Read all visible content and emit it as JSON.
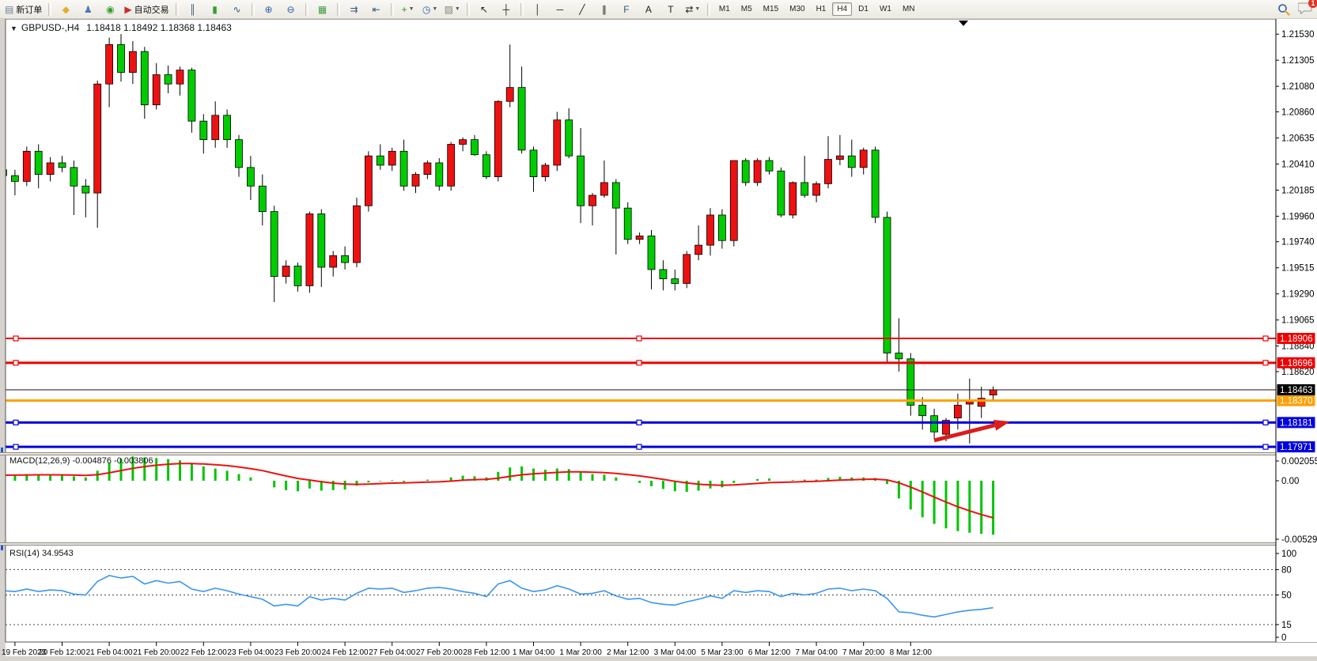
{
  "app": {
    "badge_count": "1"
  },
  "toolbar": {
    "new_order_label": "新订单",
    "auto_trading_label": "自动交易",
    "timeframes": [
      "M1",
      "M5",
      "M15",
      "M30",
      "H1",
      "H4",
      "D1",
      "W1",
      "MN"
    ],
    "active_timeframe": "H4",
    "icon_groups": [
      [
        {
          "name": "new-order-button",
          "icon": "page",
          "label_key": "new_order_label"
        }
      ],
      [
        {
          "name": "styles-button",
          "icon": "diamond"
        },
        {
          "name": "profiles-button",
          "icon": "person"
        },
        {
          "name": "signals-button",
          "icon": "signal"
        },
        {
          "name": "auto-trading-button",
          "icon": "robot",
          "label_key": "auto_trading_label"
        }
      ],
      [
        {
          "name": "bar-chart-button",
          "icon": "bars"
        },
        {
          "name": "candle-chart-button",
          "icon": "candles"
        },
        {
          "name": "line-chart-button",
          "icon": "line"
        }
      ],
      [
        {
          "name": "zoom-in-button",
          "icon": "zoom-in"
        },
        {
          "name": "zoom-out-button",
          "icon": "zoom-out"
        }
      ],
      [
        {
          "name": "tile-windows-button",
          "icon": "tile"
        }
      ],
      [
        {
          "name": "auto-scroll-button",
          "icon": "scroll"
        },
        {
          "name": "chart-shift-button",
          "icon": "shift"
        }
      ],
      [
        {
          "name": "indicators-button",
          "icon": "indicators",
          "dropdown": true
        },
        {
          "name": "periods-button",
          "icon": "clock",
          "dropdown": true
        },
        {
          "name": "templates-button",
          "icon": "template",
          "dropdown": true
        }
      ],
      [
        {
          "name": "cursor-button",
          "icon": "cursor"
        },
        {
          "name": "crosshair-button",
          "icon": "crosshair"
        }
      ],
      [
        {
          "name": "vline-button",
          "icon": "vline"
        },
        {
          "name": "hline-button",
          "icon": "hline"
        },
        {
          "name": "trendline-button",
          "icon": "tline"
        },
        {
          "name": "channel-button",
          "icon": "channel"
        },
        {
          "name": "fibonacci-button",
          "icon": "fibo"
        },
        {
          "name": "text-button",
          "icon": "text"
        },
        {
          "name": "label-button",
          "icon": "label"
        },
        {
          "name": "shapes-button",
          "icon": "shapes",
          "dropdown": true
        }
      ]
    ]
  },
  "chart": {
    "collapse_arrow": "▼",
    "symbol_period": "GBPUSD-,H4",
    "ohlc_text": "1.18418 1.18492 1.18368 1.18463"
  },
  "indicators": {
    "macd_label": "MACD(12,26,9) -0.004876 -0.003806",
    "rsi_label": "RSI(14) 34.9543"
  },
  "chart_data": {
    "type": "candlestick",
    "symbol": "GBPUSD-",
    "timeframe": "H4",
    "current_ohlc": {
      "open": 1.18418,
      "high": 1.18492,
      "low": 1.18368,
      "close": 1.18463
    },
    "ylim": [
      1.17925,
      1.2166
    ],
    "grid": false,
    "x_labels": [
      "19 Feb 2023",
      "20 Feb 12:00",
      "21 Feb 04:00",
      "21 Feb 20:00",
      "22 Feb 12:00",
      "23 Feb 04:00",
      "23 Feb 20:00",
      "24 Feb 12:00",
      "27 Feb 04:00",
      "27 Feb 20:00",
      "28 Feb 12:00",
      "1 Mar 04:00",
      "1 Mar 20:00",
      "2 Mar 12:00",
      "3 Mar 04:00",
      "5 Mar 23:00",
      "6 Mar 12:00",
      "7 Mar 04:00",
      "7 Mar 20:00",
      "8 Mar 12:00"
    ],
    "first_label_bar": 1,
    "bars_per_label": 4,
    "price_scale_ticks": [
      1.2153,
      1.21305,
      1.2108,
      1.2086,
      1.20635,
      1.2041,
      1.20185,
      1.1996,
      1.1974,
      1.19515,
      1.1929,
      1.19065,
      1.1884,
      1.1862
    ],
    "candles": [
      [
        1.2036,
        1.2042,
        1.2027,
        1.2031
      ],
      [
        1.2031,
        1.2036,
        1.2014,
        1.2026
      ],
      [
        1.2026,
        1.2056,
        1.2022,
        1.2052
      ],
      [
        1.2052,
        1.2058,
        1.202,
        1.2032
      ],
      [
        1.2032,
        1.2047,
        1.2026,
        1.2042
      ],
      [
        1.2042,
        1.2048,
        1.2034,
        1.2038
      ],
      [
        1.2038,
        1.2044,
        1.1997,
        1.2022
      ],
      [
        1.2022,
        1.2028,
        1.1995,
        1.2016
      ],
      [
        1.2016,
        1.2113,
        1.1986,
        1.211
      ],
      [
        1.211,
        1.215,
        1.209,
        1.2144
      ],
      [
        1.2144,
        1.2153,
        1.2112,
        1.212
      ],
      [
        1.212,
        1.2147,
        1.211,
        1.2138
      ],
      [
        1.2138,
        1.2142,
        1.208,
        1.2092
      ],
      [
        1.2092,
        1.2128,
        1.2088,
        1.2118
      ],
      [
        1.2118,
        1.2126,
        1.2102,
        1.211
      ],
      [
        1.211,
        1.2125,
        1.21,
        1.2122
      ],
      [
        1.2122,
        1.2124,
        1.2068,
        1.2078
      ],
      [
        1.2078,
        1.2084,
        1.205,
        1.2062
      ],
      [
        1.2062,
        1.2095,
        1.2055,
        1.2083
      ],
      [
        1.2083,
        1.2088,
        1.2055,
        1.2062
      ],
      [
        1.2062,
        1.2066,
        1.203,
        1.2038
      ],
      [
        1.2038,
        1.2048,
        1.201,
        1.2022
      ],
      [
        1.2022,
        1.2032,
        1.1988,
        1.2
      ],
      [
        1.2,
        1.2005,
        1.1922,
        1.1944
      ],
      [
        1.1944,
        1.1958,
        1.1938,
        1.1953
      ],
      [
        1.1953,
        1.1956,
        1.1931,
        1.1936
      ],
      [
        1.1936,
        1.2,
        1.193,
        1.1998
      ],
      [
        1.1998,
        1.2002,
        1.1935,
        1.1952
      ],
      [
        1.1952,
        1.1966,
        1.1944,
        1.1962
      ],
      [
        1.1962,
        1.197,
        1.195,
        1.1956
      ],
      [
        1.1956,
        1.2012,
        1.1952,
        1.2005
      ],
      [
        1.2005,
        1.2052,
        1.2,
        1.2048
      ],
      [
        1.2048,
        1.2058,
        1.2036,
        1.204
      ],
      [
        1.204,
        1.2055,
        1.2035,
        1.2052
      ],
      [
        1.2052,
        1.2062,
        1.2018,
        1.2022
      ],
      [
        1.2022,
        1.2034,
        1.2016,
        1.2032
      ],
      [
        1.2032,
        1.2044,
        1.2028,
        1.2042
      ],
      [
        1.2042,
        1.2046,
        1.2018,
        1.2022
      ],
      [
        1.2022,
        1.206,
        1.2018,
        1.2058
      ],
      [
        1.2058,
        1.2064,
        1.2052,
        1.2062
      ],
      [
        1.2062,
        1.2066,
        1.2048,
        1.2049
      ],
      [
        1.2049,
        1.2052,
        1.2028,
        1.203
      ],
      [
        1.203,
        1.2096,
        1.2026,
        1.2095
      ],
      [
        1.2095,
        1.2144,
        1.209,
        1.2107
      ],
      [
        1.2107,
        1.2125,
        1.205,
        1.2053
      ],
      [
        1.2053,
        1.2056,
        1.2017,
        1.203
      ],
      [
        1.203,
        1.2042,
        1.2026,
        1.204
      ],
      [
        1.204,
        1.2086,
        1.2035,
        1.2079
      ],
      [
        1.2079,
        1.2089,
        1.2046,
        1.2048
      ],
      [
        1.2048,
        1.2072,
        1.199,
        1.2005
      ],
      [
        1.2005,
        1.2016,
        1.1988,
        1.2014
      ],
      [
        1.2014,
        1.2044,
        1.2012,
        1.2025
      ],
      [
        1.2025,
        1.2028,
        1.1963,
        1.2003
      ],
      [
        1.2003,
        1.2008,
        1.1972,
        1.1976
      ],
      [
        1.1976,
        1.1982,
        1.1972,
        1.1979
      ],
      [
        1.1979,
        1.1984,
        1.1933,
        1.195
      ],
      [
        1.195,
        1.1958,
        1.1932,
        1.1942
      ],
      [
        1.1942,
        1.195,
        1.1932,
        1.1938
      ],
      [
        1.1938,
        1.1966,
        1.1934,
        1.1963
      ],
      [
        1.1963,
        1.1988,
        1.1958,
        1.1971
      ],
      [
        1.1971,
        1.2003,
        1.1962,
        1.1997
      ],
      [
        1.1997,
        1.2002,
        1.1968,
        1.1975
      ],
      [
        1.1975,
        1.2044,
        1.197,
        1.2044
      ],
      [
        1.2044,
        1.2046,
        1.2022,
        1.2025
      ],
      [
        1.2025,
        1.2046,
        1.2022,
        1.2044
      ],
      [
        1.2044,
        1.2047,
        1.2032,
        1.2035
      ],
      [
        1.2035,
        1.2038,
        1.1995,
        1.1997
      ],
      [
        1.1997,
        1.2026,
        1.1994,
        1.2025
      ],
      [
        1.2025,
        1.2048,
        1.2012,
        1.2014
      ],
      [
        1.2014,
        1.2026,
        1.2008,
        1.2024
      ],
      [
        1.2024,
        1.2065,
        1.202,
        1.2045
      ],
      [
        1.2045,
        1.2066,
        1.204,
        1.2048
      ],
      [
        1.2048,
        1.2062,
        1.203,
        1.2038
      ],
      [
        1.2038,
        1.2055,
        1.2032,
        1.2053
      ],
      [
        1.2053,
        1.2056,
        1.199,
        1.1995
      ],
      [
        1.1995,
        1.2,
        1.187,
        1.1878
      ],
      [
        1.1878,
        1.1908,
        1.1862,
        1.1873
      ],
      [
        1.1873,
        1.1878,
        1.1824,
        1.1833
      ],
      [
        1.1833,
        1.184,
        1.1812,
        1.1824
      ],
      [
        1.1824,
        1.183,
        1.1804,
        1.181
      ],
      [
        1.1808,
        1.1822,
        1.1802,
        1.182
      ],
      [
        1.1822,
        1.1843,
        1.1812,
        1.1833
      ],
      [
        1.1834,
        1.1856,
        1.18,
        1.1837
      ],
      [
        1.1832,
        1.1849,
        1.1822,
        1.1839
      ],
      [
        1.18418,
        1.18492,
        1.18368,
        1.18463
      ]
    ],
    "hlines": [
      {
        "price": 1.18906,
        "label": "1.18906",
        "color": "#ee0000",
        "width": 2,
        "handles": true
      },
      {
        "price": 1.18696,
        "label": "1.18696",
        "color": "#ee0000",
        "width": 3,
        "handles": true
      },
      {
        "price": 1.1837,
        "label": "1.18370",
        "color": "#ffa000",
        "width": 3,
        "handles": false
      },
      {
        "price": 1.18181,
        "label": "1.18181",
        "color": "#0000e0",
        "width": 3,
        "handles": true
      },
      {
        "price": 1.17971,
        "label": "1.17971",
        "color": "#0000e0",
        "width": 3,
        "handles": true
      }
    ],
    "bid": {
      "price": 1.18463,
      "label": "1.18463",
      "color": "#000000"
    },
    "macd": {
      "label": "MACD(12,26,9)",
      "params": [
        12,
        26,
        9
      ],
      "main_last": -0.004876,
      "signal_last": -0.003806,
      "scale_values": [
        0.002055,
        0,
        -0.005292
      ],
      "scale_labels": [
        "0.002055",
        "0.00",
        "-0.005292"
      ],
      "hist": [
        0.0005,
        0.00055,
        0.0006,
        0.0006,
        0.00055,
        0.0005,
        0.0004,
        0.0003,
        0.0009,
        0.0016,
        0.002,
        0.0022,
        0.0021,
        0.00205,
        0.00195,
        0.00185,
        0.0016,
        0.0013,
        0.0011,
        0.0009,
        0.0006,
        0.0003,
        0.0,
        -0.0006,
        -0.00085,
        -0.00095,
        -0.0007,
        -0.0009,
        -0.00085,
        -0.0008,
        -0.00045,
        -0.00015,
        -5e-05,
        5e-05,
        -0.0001,
        0.0,
        0.0001,
        0.0,
        0.0003,
        0.00045,
        0.0004,
        0.0003,
        0.0008,
        0.0012,
        0.0013,
        0.0011,
        0.001,
        0.0011,
        0.00105,
        0.0008,
        0.0006,
        0.00055,
        0.0003,
        0.0,
        -0.0002,
        -0.0005,
        -0.00075,
        -0.00095,
        -0.001,
        -0.0009,
        -0.0007,
        -0.0006,
        -0.0002,
        0.0,
        0.00015,
        0.0002,
        0.0,
        5e-05,
        0.0001,
        0.0001,
        0.00025,
        0.00035,
        0.0003,
        0.0003,
        0.00025,
        -0.0003,
        -0.0016,
        -0.0026,
        -0.0033,
        -0.0039,
        -0.0043,
        -0.00455,
        -0.0047,
        -0.0048,
        -0.004876
      ]
    },
    "rsi": {
      "label": "RSI(14)",
      "period": 14,
      "last": 34.9543,
      "levels": [
        80,
        50,
        15
      ],
      "scale_labels": [
        "100",
        "80",
        "50",
        "15",
        "0"
      ],
      "scale_values": [
        100,
        80,
        50,
        15,
        0
      ],
      "values": [
        55,
        54,
        57,
        54,
        56,
        55,
        51,
        50,
        66,
        73,
        70,
        72,
        63,
        67,
        64,
        66,
        57,
        54,
        58,
        55,
        51,
        48,
        45,
        37,
        39,
        37,
        48,
        44,
        46,
        44,
        52,
        58,
        57,
        58,
        53,
        55,
        58,
        59,
        57,
        54,
        52,
        48,
        63,
        67,
        58,
        54,
        56,
        61,
        57,
        51,
        52,
        55,
        49,
        45,
        46,
        41,
        39,
        38,
        42,
        45,
        49,
        46,
        55,
        53,
        55,
        54,
        48,
        52,
        50,
        52,
        57,
        58,
        55,
        57,
        55,
        46,
        30,
        29,
        26,
        24,
        27,
        30,
        32,
        33,
        34.95
      ]
    },
    "arrow_annotation": {
      "from": [
        1181,
        557
      ],
      "to": [
        1277,
        533
      ],
      "color": "#dc1c1c"
    }
  },
  "colors": {
    "bull": "#ee1111",
    "bear": "#00cc00",
    "wick": "#000000",
    "macd_hist": "#00c400",
    "macd_signal": "#ee1111",
    "rsi_line": "#3a96ee",
    "chrome": "#d6d3ce",
    "label_text": "#ffffff"
  }
}
